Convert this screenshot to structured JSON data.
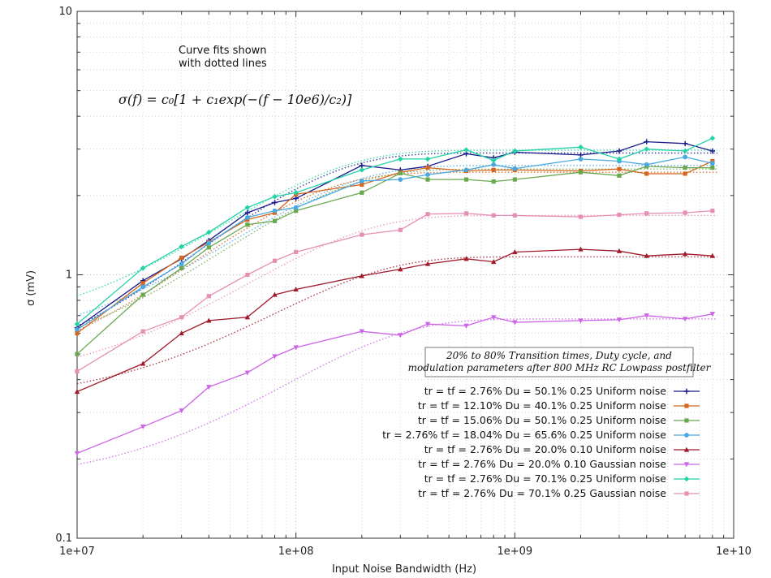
{
  "chart_data": {
    "type": "line",
    "xscale": "log",
    "yscale": "log",
    "xlim": [
      10000000,
      10000000000
    ],
    "ylim": [
      0.1,
      10
    ],
    "xlabel": "Input Noise Bandwidth (Hz)",
    "ylabel": "σ (mV)",
    "x_ticks": [
      {
        "value": 10000000,
        "label": "1e+07"
      },
      {
        "value": 100000000,
        "label": "1e+08"
      },
      {
        "value": 1000000000,
        "label": "1e+09"
      },
      {
        "value": 10000000000,
        "label": "1e+10"
      }
    ],
    "y_ticks": [
      {
        "value": 0.1,
        "label": "0.1"
      },
      {
        "value": 1,
        "label": "1"
      },
      {
        "value": 10,
        "label": "10"
      }
    ],
    "grid": true,
    "annotations": {
      "fit_note_line1": "Curve fits shown",
      "fit_note_line2": "with dotted lines",
      "formula": "σ(f) = c₀[1 + c₁exp(−(f − 10e6)/c₂)]"
    },
    "legend_title_line1": "20% to 80% Transition times, Duty cycle, and",
    "legend_title_line2": "modulation parameters after 800 MHz RC Lowpass postfilter",
    "legend_position": "bottom-right",
    "x": [
      10000000,
      20000000,
      30000000,
      40000000,
      60000000,
      80000000,
      100000000,
      200000000,
      300000000,
      400000000,
      600000000,
      800000000,
      1000000000,
      2000000000,
      3000000000,
      4000000000,
      6000000000,
      8000000000
    ],
    "series": [
      {
        "name": "tr = tf = 2.76% Du = 50.1% 0.25 Uniform noise",
        "color": "#1a1a8c",
        "marker": "plus",
        "values": [
          0.63,
          0.95,
          1.15,
          1.35,
          1.72,
          1.88,
          1.95,
          2.6,
          2.5,
          2.58,
          2.88,
          2.78,
          2.92,
          2.85,
          2.95,
          3.2,
          3.15,
          2.95
        ],
        "fit": {
          "c0": 2.9,
          "c1": -0.78,
          "c2": 85000000
        }
      },
      {
        "name": "tr = tf = 12.10% Du = 40.1% 0.25 Uniform noise",
        "color": "#d4661f",
        "marker": "square",
        "values": [
          0.6,
          0.93,
          1.16,
          1.33,
          1.62,
          1.72,
          2.02,
          2.2,
          2.45,
          2.55,
          2.48,
          2.5,
          2.5,
          2.48,
          2.52,
          2.42,
          2.42,
          2.7
        ],
        "fit": {
          "c0": 2.45,
          "c1": -0.75,
          "c2": 75000000
        }
      },
      {
        "name": "tr = tf = 15.06% Du = 50.1% 0.25 Uniform noise",
        "color": "#6aa84f",
        "marker": "filled-square",
        "values": [
          0.5,
          0.84,
          1.06,
          1.27,
          1.55,
          1.6,
          1.75,
          2.05,
          2.43,
          2.3,
          2.3,
          2.26,
          2.3,
          2.45,
          2.38,
          2.58,
          2.55,
          2.55
        ],
        "fit": {
          "c0": 2.52,
          "c1": -0.75,
          "c2": 95000000
        }
      },
      {
        "name": "tr = 2.76% tf = 18.04% Du = 65.6% 0.25 Uniform noise",
        "color": "#4aa8e0",
        "marker": "circle",
        "values": [
          0.62,
          0.9,
          1.1,
          1.32,
          1.65,
          1.75,
          1.8,
          2.27,
          2.3,
          2.4,
          2.5,
          2.62,
          2.53,
          2.75,
          2.7,
          2.62,
          2.8,
          2.65
        ],
        "fit": {
          "c0": 2.6,
          "c1": -0.73,
          "c2": 100000000
        }
      },
      {
        "name": "tr = tf = 2.76% Du = 20.0% 0.10 Uniform noise",
        "color": "#a01a2a",
        "marker": "triangle",
        "values": [
          0.36,
          0.46,
          0.6,
          0.67,
          0.69,
          0.84,
          0.88,
          0.99,
          1.05,
          1.1,
          1.15,
          1.12,
          1.22,
          1.25,
          1.23,
          1.18,
          1.2,
          1.18
        ],
        "fit": {
          "c0": 1.17,
          "c1": -0.67,
          "c2": 130000000
        }
      },
      {
        "name": "tr = tf = 2.76% Du = 20.0% 0.10 Gaussian noise",
        "color": "#cc66e6",
        "marker": "triangle-down",
        "values": [
          0.21,
          0.265,
          0.305,
          0.375,
          0.425,
          0.49,
          0.53,
          0.61,
          0.59,
          0.65,
          0.64,
          0.69,
          0.66,
          0.67,
          0.675,
          0.7,
          0.68,
          0.71
        ],
        "fit": {
          "c0": 0.68,
          "c1": -0.72,
          "c2": 160000000
        }
      },
      {
        "name": "tr = tf = 2.76% Du = 70.1% 0.25 Uniform noise",
        "color": "#22d3a6",
        "marker": "diamond",
        "values": [
          0.65,
          1.06,
          1.28,
          1.45,
          1.8,
          1.98,
          2.05,
          2.5,
          2.75,
          2.75,
          2.98,
          2.72,
          2.95,
          3.05,
          2.75,
          3.0,
          2.95,
          3.3
        ],
        "fit": {
          "c0": 2.97,
          "c1": -0.72,
          "c2": 90000000
        }
      },
      {
        "name": "tr = tf = 2.76% Du = 70.1% 0.25 Gaussian noise",
        "color": "#e58fb4",
        "marker": "square-light",
        "values": [
          0.43,
          0.61,
          0.69,
          0.83,
          1.0,
          1.13,
          1.22,
          1.42,
          1.48,
          1.7,
          1.71,
          1.68,
          1.68,
          1.66,
          1.69,
          1.71,
          1.72,
          1.75
        ],
        "fit": {
          "c0": 1.68,
          "c1": -0.71,
          "c2": 110000000
        }
      }
    ]
  }
}
